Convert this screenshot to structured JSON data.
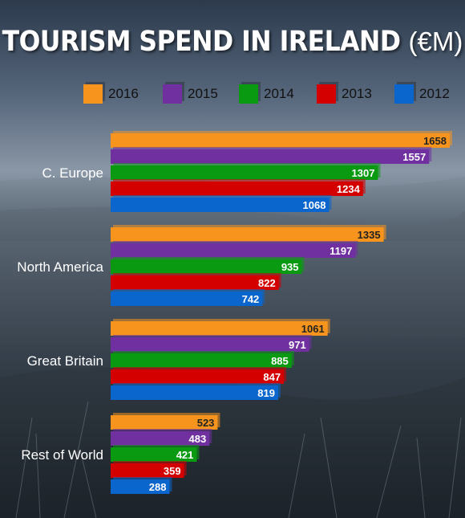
{
  "title": "TOURISM SPEND IN IRELAND",
  "title_unit": "(€M)",
  "chart_data": {
    "type": "bar",
    "orientation": "horizontal",
    "title": "TOURISM SPEND IN IRELAND (€M)",
    "categories": [
      "C. Europe",
      "North America",
      "Great Britain",
      "Rest of World"
    ],
    "series": [
      {
        "name": "2016",
        "color": "#f7941d",
        "values": [
          1658,
          1335,
          1061,
          523
        ]
      },
      {
        "name": "2015",
        "color": "#7030a0",
        "values": [
          1557,
          1197,
          971,
          483
        ]
      },
      {
        "name": "2014",
        "color": "#0a9a12",
        "values": [
          1307,
          935,
          885,
          421
        ]
      },
      {
        "name": "2013",
        "color": "#d40000",
        "values": [
          1234,
          822,
          847,
          359
        ]
      },
      {
        "name": "2012",
        "color": "#0a66cc",
        "values": [
          1068,
          742,
          819,
          288
        ]
      }
    ],
    "legend_order": [
      "2016",
      "2015",
      "2014",
      "2013",
      "2012"
    ],
    "legend_position": "top",
    "data_labels": true,
    "grid": false,
    "xlim": [
      0,
      1700
    ]
  }
}
